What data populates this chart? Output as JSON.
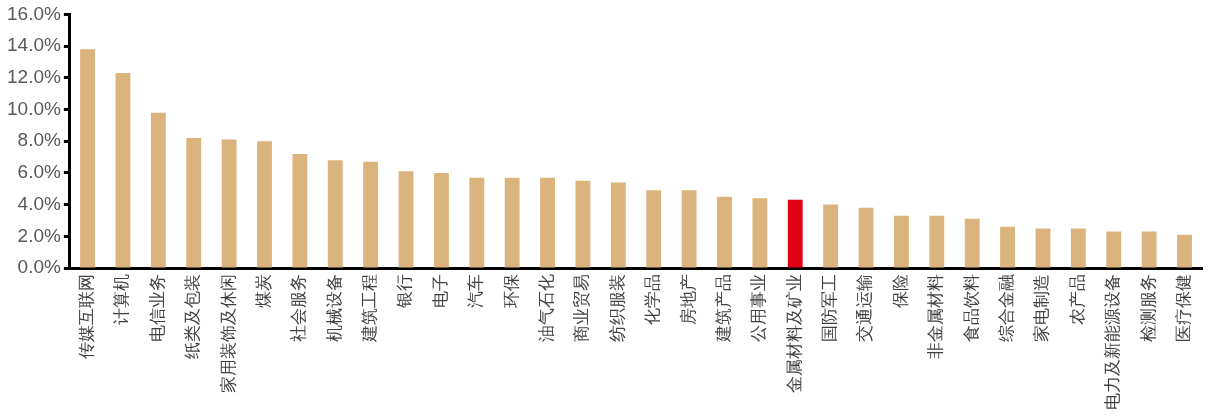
{
  "chart_data": {
    "type": "bar",
    "categories": [
      "传媒互联网",
      "计算机",
      "电信业务",
      "纸类及包装",
      "家用装饰及休闲",
      "煤炭",
      "社会服务",
      "机械设备",
      "建筑工程",
      "银行",
      "电子",
      "汽车",
      "环保",
      "油气石化",
      "商业贸易",
      "纺织服装",
      "化学品",
      "房地产",
      "建筑产品",
      "公用事业",
      "金属材料及矿业",
      "国防军工",
      "交通运输",
      "保险",
      "非金属材料",
      "食品饮料",
      "综合金融",
      "家电制造",
      "农产品",
      "电力及新能源设备",
      "检测服务",
      "医疗保健"
    ],
    "values": [
      13.8,
      12.3,
      9.8,
      8.2,
      8.1,
      8.0,
      7.2,
      6.8,
      6.7,
      6.1,
      6.0,
      5.7,
      5.7,
      5.7,
      5.5,
      5.4,
      4.9,
      4.9,
      4.5,
      4.4,
      4.3,
      4.0,
      3.8,
      3.3,
      3.3,
      3.1,
      2.6,
      2.5,
      2.5,
      2.3,
      2.3,
      2.1
    ],
    "colors": [
      "#dbb37d",
      "#dbb37d",
      "#dbb37d",
      "#dbb37d",
      "#dbb37d",
      "#dbb37d",
      "#dbb37d",
      "#dbb37d",
      "#dbb37d",
      "#dbb37d",
      "#dbb37d",
      "#dbb37d",
      "#dbb37d",
      "#dbb37d",
      "#dbb37d",
      "#dbb37d",
      "#dbb37d",
      "#dbb37d",
      "#dbb37d",
      "#dbb37d",
      "#e00015",
      "#dbb37d",
      "#dbb37d",
      "#dbb37d",
      "#dbb37d",
      "#dbb37d",
      "#dbb37d",
      "#dbb37d",
      "#dbb37d",
      "#dbb37d",
      "#dbb37d",
      "#dbb37d"
    ],
    "ylim": [
      0,
      16
    ],
    "yticks": [
      {
        "value": 0,
        "label": "0.0%"
      },
      {
        "value": 2,
        "label": "2.0%"
      },
      {
        "value": 4,
        "label": "4.0%"
      },
      {
        "value": 6,
        "label": "6.0%"
      },
      {
        "value": 8,
        "label": "8.0%"
      },
      {
        "value": 10,
        "label": "10.0%"
      },
      {
        "value": 12,
        "label": "12.0%"
      },
      {
        "value": 14,
        "label": "14.0%"
      },
      {
        "value": 16,
        "label": "16.0%"
      }
    ],
    "grid": false,
    "legend": false
  }
}
